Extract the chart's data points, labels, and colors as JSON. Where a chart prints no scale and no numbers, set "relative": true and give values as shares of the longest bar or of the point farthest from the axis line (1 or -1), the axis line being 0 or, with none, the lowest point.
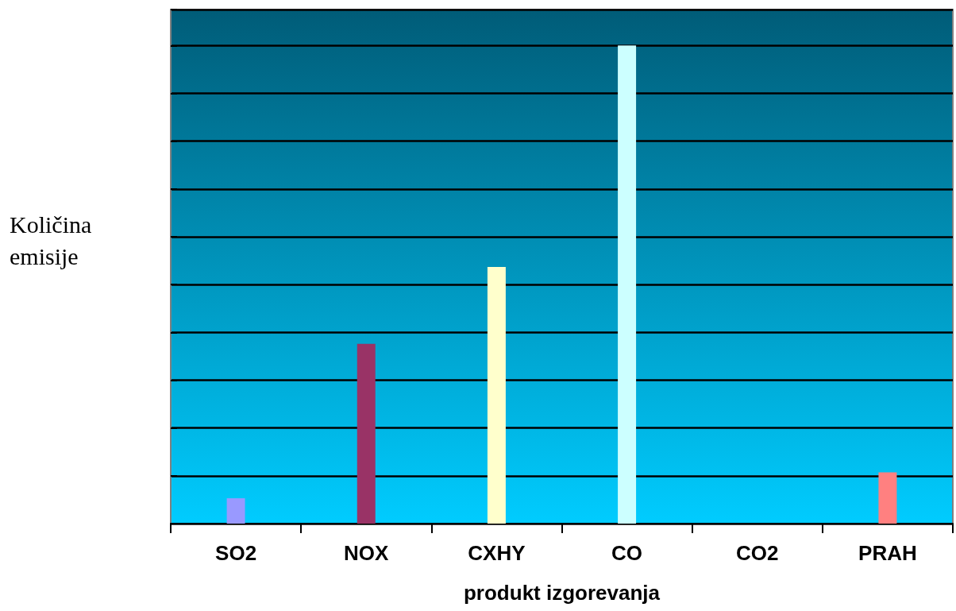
{
  "chart_data": {
    "type": "bar",
    "relative": true,
    "ylabel": "Količina emisije",
    "xlabel": "produkt izgorevanja",
    "categories": [
      "SO2",
      "NOX",
      "CXHY",
      "CO",
      "CO2",
      "PRAH"
    ],
    "values": [
      0.053,
      0.376,
      0.537,
      1,
      0,
      0.107
    ],
    "colors": [
      "#9999ff",
      "#993366",
      "#ffffcc",
      "#ccffff",
      "#660066",
      "#ff8080"
    ],
    "grid": "y"
  }
}
